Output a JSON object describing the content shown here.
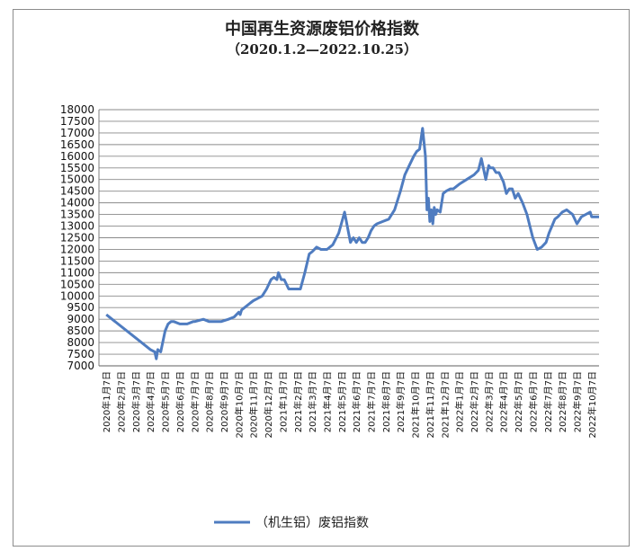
{
  "chart_data": {
    "type": "line",
    "title": "中国再生资源废铝价格指数",
    "subtitle": "（2020.1.2—2022.10.25）",
    "ylim": [
      7000,
      18000
    ],
    "y_ticks": [
      7000,
      7500,
      8000,
      8500,
      9000,
      9500,
      10000,
      10500,
      11000,
      11500,
      12000,
      12500,
      13000,
      13500,
      14000,
      14500,
      15000,
      15500,
      16000,
      16500,
      17000,
      17500,
      18000
    ],
    "grid": true,
    "legend_position": "bottom",
    "categories": [
      "2020年1月7日",
      "2020年2月7日",
      "2020年3月7日",
      "2020年4月7日",
      "2020年5月7日",
      "2020年6月7日",
      "2020年7月7日",
      "2020年8月7日",
      "2020年9月7日",
      "2020年10月7日",
      "2020年11月7日",
      "2020年12月7日",
      "2021年1月7日",
      "2021年2月7日",
      "2021年3月7日",
      "2021年4月7日",
      "2021年5月7日",
      "2021年6月7日",
      "2021年7月7日",
      "2021年8月7日",
      "2021年9月7日",
      "2021年10月7日",
      "2021年11月7日",
      "2021年12月7日",
      "2022年1月7日",
      "2022年2月7日",
      "2022年3月7日",
      "2022年4月7日",
      "2022年5月7日",
      "2022年6月7日",
      "2022年7月7日",
      "2022年8月7日",
      "2022年9月7日",
      "2022年10月7日"
    ],
    "series": [
      {
        "name": "（机生铝）废铝指数",
        "color": "#4f7cc0",
        "x": [
          0,
          0.2,
          2.0,
          3.0,
          3.3,
          3.4,
          3.5,
          3.7,
          4.0,
          4.2,
          4.4,
          4.6,
          5.0,
          5.5,
          5.9,
          6.0,
          6.6,
          7.0,
          7.5,
          7.8,
          8.3,
          8.7,
          9.0,
          9.1,
          9.2,
          9.4,
          9.8,
          10.0,
          10.3,
          10.6,
          10.9,
          11.2,
          11.4,
          11.6,
          11.7,
          11.9,
          12.1,
          12.4,
          12.7,
          13.2,
          13.5,
          13.8,
          14.0,
          14.3,
          14.6,
          15.0,
          15.4,
          15.8,
          16.2,
          16.6,
          16.8,
          17.0,
          17.2,
          17.4,
          17.6,
          17.8,
          18.0,
          18.2,
          18.4,
          18.8,
          19.2,
          19.6,
          20.0,
          20.3,
          20.6,
          20.9,
          21.1,
          21.3,
          21.5,
          21.7,
          21.8,
          21.9,
          22.0,
          22.1,
          22.2,
          22.3,
          22.4,
          22.5,
          22.7,
          22.9,
          23.1,
          23.4,
          23.6,
          24.0,
          24.5,
          25.0,
          25.3,
          25.5,
          25.8,
          26.0,
          26.1,
          26.3,
          26.5,
          26.7,
          27.0,
          27.2,
          27.4,
          27.6,
          27.8,
          28.0,
          28.3,
          28.6,
          28.8,
          29.0,
          29.3,
          29.6,
          29.9,
          30.1,
          30.3,
          30.5,
          30.7,
          31.0,
          31.3,
          31.7,
          32.0,
          32.3,
          32.6,
          32.9,
          33.0,
          33.2,
          33.5
        ],
        "values": [
          9200,
          9100,
          8200,
          7700,
          7600,
          7300,
          7700,
          7600,
          8500,
          8800,
          8900,
          8900,
          8800,
          8800,
          8900,
          8900,
          9000,
          8900,
          8900,
          8900,
          9000,
          9100,
          9300,
          9200,
          9400,
          9500,
          9700,
          9800,
          9900,
          10000,
          10300,
          10700,
          10800,
          10700,
          11000,
          10700,
          10700,
          10300,
          10300,
          10300,
          11000,
          11800,
          11900,
          12100,
          12000,
          12000,
          12200,
          12700,
          13600,
          12300,
          12500,
          12300,
          12500,
          12300,
          12300,
          12500,
          12800,
          13000,
          13100,
          13200,
          13300,
          13700,
          14500,
          15200,
          15600,
          16000,
          16200,
          16300,
          17200,
          16000,
          13700,
          14200,
          13200,
          13700,
          13100,
          13800,
          13500,
          13700,
          13600,
          14400,
          14500,
          14600,
          14600,
          14800,
          15000,
          15200,
          15400,
          15900,
          15000,
          15600,
          15500,
          15500,
          15300,
          15300,
          14900,
          14400,
          14600,
          14600,
          14200,
          14400,
          14000,
          13500,
          13000,
          12500,
          12000,
          12100,
          12300,
          12700,
          13000,
          13300,
          13400,
          13600,
          13700,
          13500,
          13100,
          13400,
          13500,
          13600,
          13400,
          13400,
          13400
        ]
      }
    ]
  }
}
